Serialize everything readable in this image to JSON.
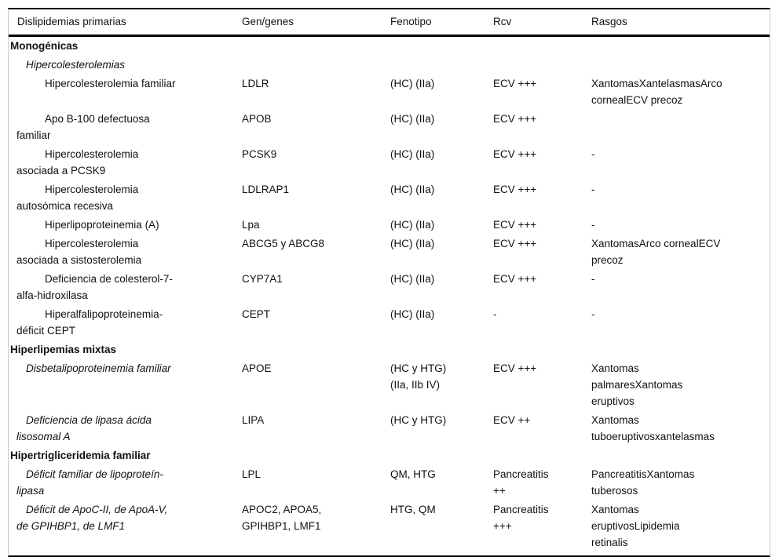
{
  "table": {
    "columns": [
      "Dislipidemias primarias",
      "Gen/genes",
      "Fenotipo",
      "Rcv",
      "Rasgos"
    ],
    "rows": [
      {
        "type": "section",
        "name": "Monogénicas",
        "gen": "",
        "fenotipo": "",
        "rcv": "",
        "rasgos": ""
      },
      {
        "type": "subsection",
        "name": "Hipercolesterolemias",
        "gen": "",
        "fenotipo": "",
        "rcv": "",
        "rasgos": ""
      },
      {
        "type": "item",
        "name": "Hipercolesterolemia familiar",
        "gen": "LDLR",
        "fenotipo": "(HC) (IIa)",
        "rcv": "ECV +++",
        "rasgos": "XantomasXantelasmasArco\ncornealECV precoz"
      },
      {
        "type": "item",
        "name": "Apo B-100 defectuosa\nfamiliar",
        "gen": "APOB",
        "fenotipo": "(HC) (IIa)",
        "rcv": "ECV +++",
        "rasgos": ""
      },
      {
        "type": "item",
        "name": "Hipercolesterolemia\nasociada a PCSK9",
        "gen": "PCSK9",
        "fenotipo": "(HC) (IIa)",
        "rcv": "ECV +++",
        "rasgos": "-"
      },
      {
        "type": "item",
        "name": "Hipercolesterolemia\nautosómica recesiva",
        "gen": "LDLRAP1",
        "fenotipo": "(HC) (IIa)",
        "rcv": "ECV +++",
        "rasgos": "-"
      },
      {
        "type": "item",
        "name": "Hiperlipoproteinemia (A)",
        "gen": "Lpa",
        "fenotipo": "(HC) (IIa)",
        "rcv": "ECV +++",
        "rasgos": "-"
      },
      {
        "type": "item",
        "name": "Hipercolesterolemia\nasociada a sistosterolemia",
        "gen": "ABCG5 y ABCG8",
        "fenotipo": "(HC) (IIa)",
        "rcv": "ECV +++",
        "rasgos": "XantomasArco cornealECV\nprecoz"
      },
      {
        "type": "item",
        "name": "Deficiencia de colesterol-7-\nalfa-hidroxilasa",
        "gen": "CYP7A1",
        "fenotipo": "(HC) (IIa)",
        "rcv": "ECV +++",
        "rasgos": "-"
      },
      {
        "type": "item",
        "name": "Hiperalfalipoproteinemia-\ndéficit CEPT",
        "gen": "CEPT",
        "fenotipo": "(HC) (IIa)",
        "rcv": "-",
        "rasgos": "-"
      },
      {
        "type": "section",
        "name": "Hiperlipemias mixtas",
        "gen": "",
        "fenotipo": "",
        "rcv": "",
        "rasgos": ""
      },
      {
        "type": "item-italic",
        "name": "Disbetalipoproteinemia familiar",
        "gen": "APOE",
        "fenotipo": "(HC y HTG)\n(IIa, IIb IV)",
        "rcv": "ECV +++",
        "rasgos": "Xantomas\npalmaresXantomas\neruptivos"
      },
      {
        "type": "item-italic",
        "name": "Deficiencia de lipasa ácida\nlisosomal A",
        "gen": "LIPA",
        "fenotipo": "(HC y HTG)",
        "rcv": "ECV ++",
        "rasgos": "Xantomas\ntuboeruptivosxantelasmas"
      },
      {
        "type": "section",
        "name": "Hipertrigliceridemia familiar",
        "gen": "",
        "fenotipo": "",
        "rcv": "",
        "rasgos": ""
      },
      {
        "type": "item-italic",
        "name": "Déficit familiar de lipoproteín-\nlipasa",
        "gen": "LPL",
        "fenotipo": "QM, HTG",
        "rcv": "Pancreatitis\n++",
        "rasgos": "PancreatitisXantomas\ntuberosos"
      },
      {
        "type": "item-italic",
        "name": "Déficit de ApoC-II, de ApoA-V,\nde GPIHBP1, de LMF1",
        "gen": "APOC2, APOA5,\nGPIHBP1, LMF1",
        "fenotipo": "HTG, QM",
        "rcv": "Pancreatitis\n+++",
        "rasgos": "Xantomas\neruptivosLipidemia\nretinalis"
      }
    ]
  }
}
